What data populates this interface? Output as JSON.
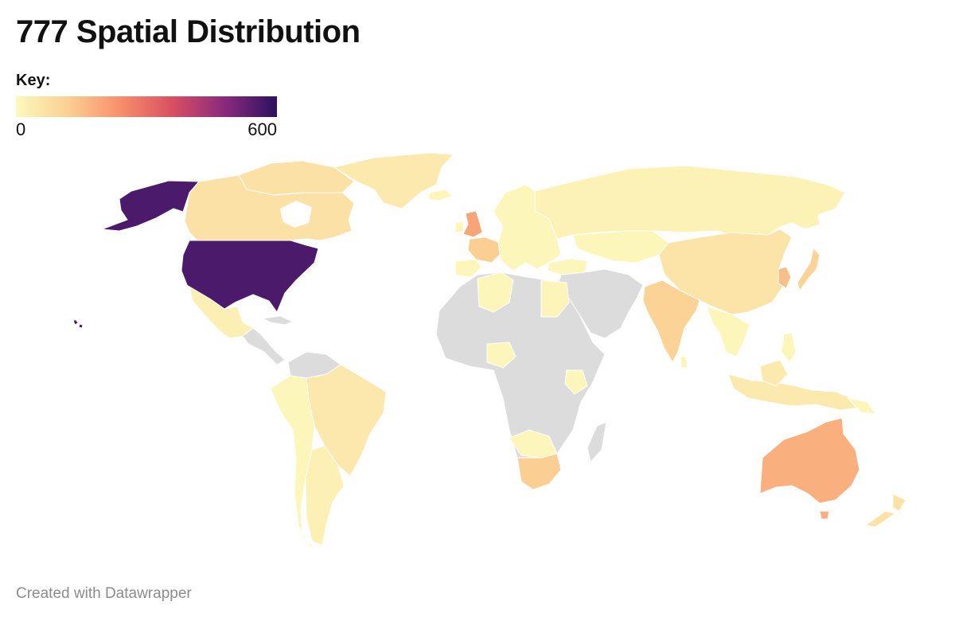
{
  "title": "777 Spatial Distribution",
  "legend": {
    "label": "Key:",
    "min_label": "0",
    "max_label": "600",
    "min": 0,
    "max": 600,
    "color_stops": [
      "#fcf9bd",
      "#fbcf93",
      "#f88e6b",
      "#d94f62",
      "#8a2a7d",
      "#2c1260"
    ]
  },
  "no_data_color": "#dcdcdc",
  "regions": [
    {
      "name": "United States",
      "value": 560
    },
    {
      "name": "Canada",
      "value": 70
    },
    {
      "name": "Greenland",
      "value": 45
    },
    {
      "name": "Mexico",
      "value": 30
    },
    {
      "name": "Brazil",
      "value": 50
    },
    {
      "name": "Argentina",
      "value": 25
    },
    {
      "name": "United Kingdom",
      "value": 200
    },
    {
      "name": "France",
      "value": 120
    },
    {
      "name": "Russia",
      "value": 20
    },
    {
      "name": "China",
      "value": 60
    },
    {
      "name": "India",
      "value": 110
    },
    {
      "name": "Japan",
      "value": 110
    },
    {
      "name": "South Korea",
      "value": 150
    },
    {
      "name": "Australia",
      "value": 180
    },
    {
      "name": "New Zealand",
      "value": 65
    },
    {
      "name": "South Africa",
      "value": 120
    },
    {
      "name": "Indonesia",
      "value": 45
    },
    {
      "name": "Egypt",
      "value": 15
    }
  ],
  "credit": "Created with Datawrapper"
}
